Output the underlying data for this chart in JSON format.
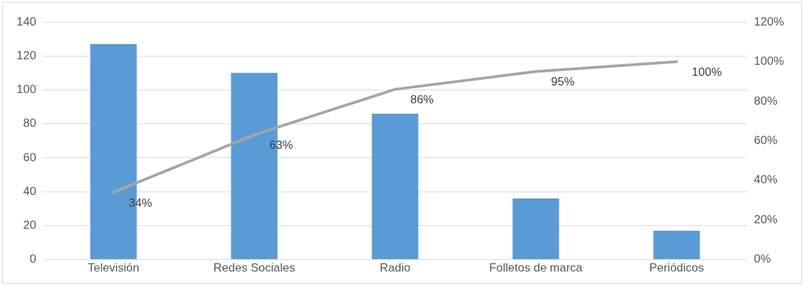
{
  "chart_data": {
    "type": "bar",
    "categories": [
      "Televisión",
      "Redes Sociales",
      "Radio",
      "Folletos de marca",
      "Periódicos"
    ],
    "series": [
      {
        "color": "#5b9bd5",
        "values": [
          127,
          110,
          86,
          36,
          17
        ]
      },
      {
        "type": "line",
        "axis": "y2",
        "color": "#a5a5a5",
        "values": [
          34,
          63,
          86,
          95,
          100
        ],
        "value_labels": [
          "34%",
          "63%",
          "86%",
          "95%",
          "100%"
        ],
        "marker": "none"
      }
    ],
    "ylim": [
      0,
      140
    ],
    "yticks": [
      0,
      20,
      40,
      60,
      80,
      100,
      120,
      140
    ],
    "y2lim": [
      0,
      120
    ],
    "y2ticks": [
      {
        "value": 0,
        "label": "0%"
      },
      {
        "value": 20,
        "label": "20%"
      },
      {
        "value": 40,
        "label": "40%"
      },
      {
        "value": 60,
        "label": "60%"
      },
      {
        "value": 80,
        "label": "80%"
      },
      {
        "value": 100,
        "label": "100%"
      },
      {
        "value": 120,
        "label": "120%"
      }
    ],
    "grid": "y",
    "legend": false
  }
}
